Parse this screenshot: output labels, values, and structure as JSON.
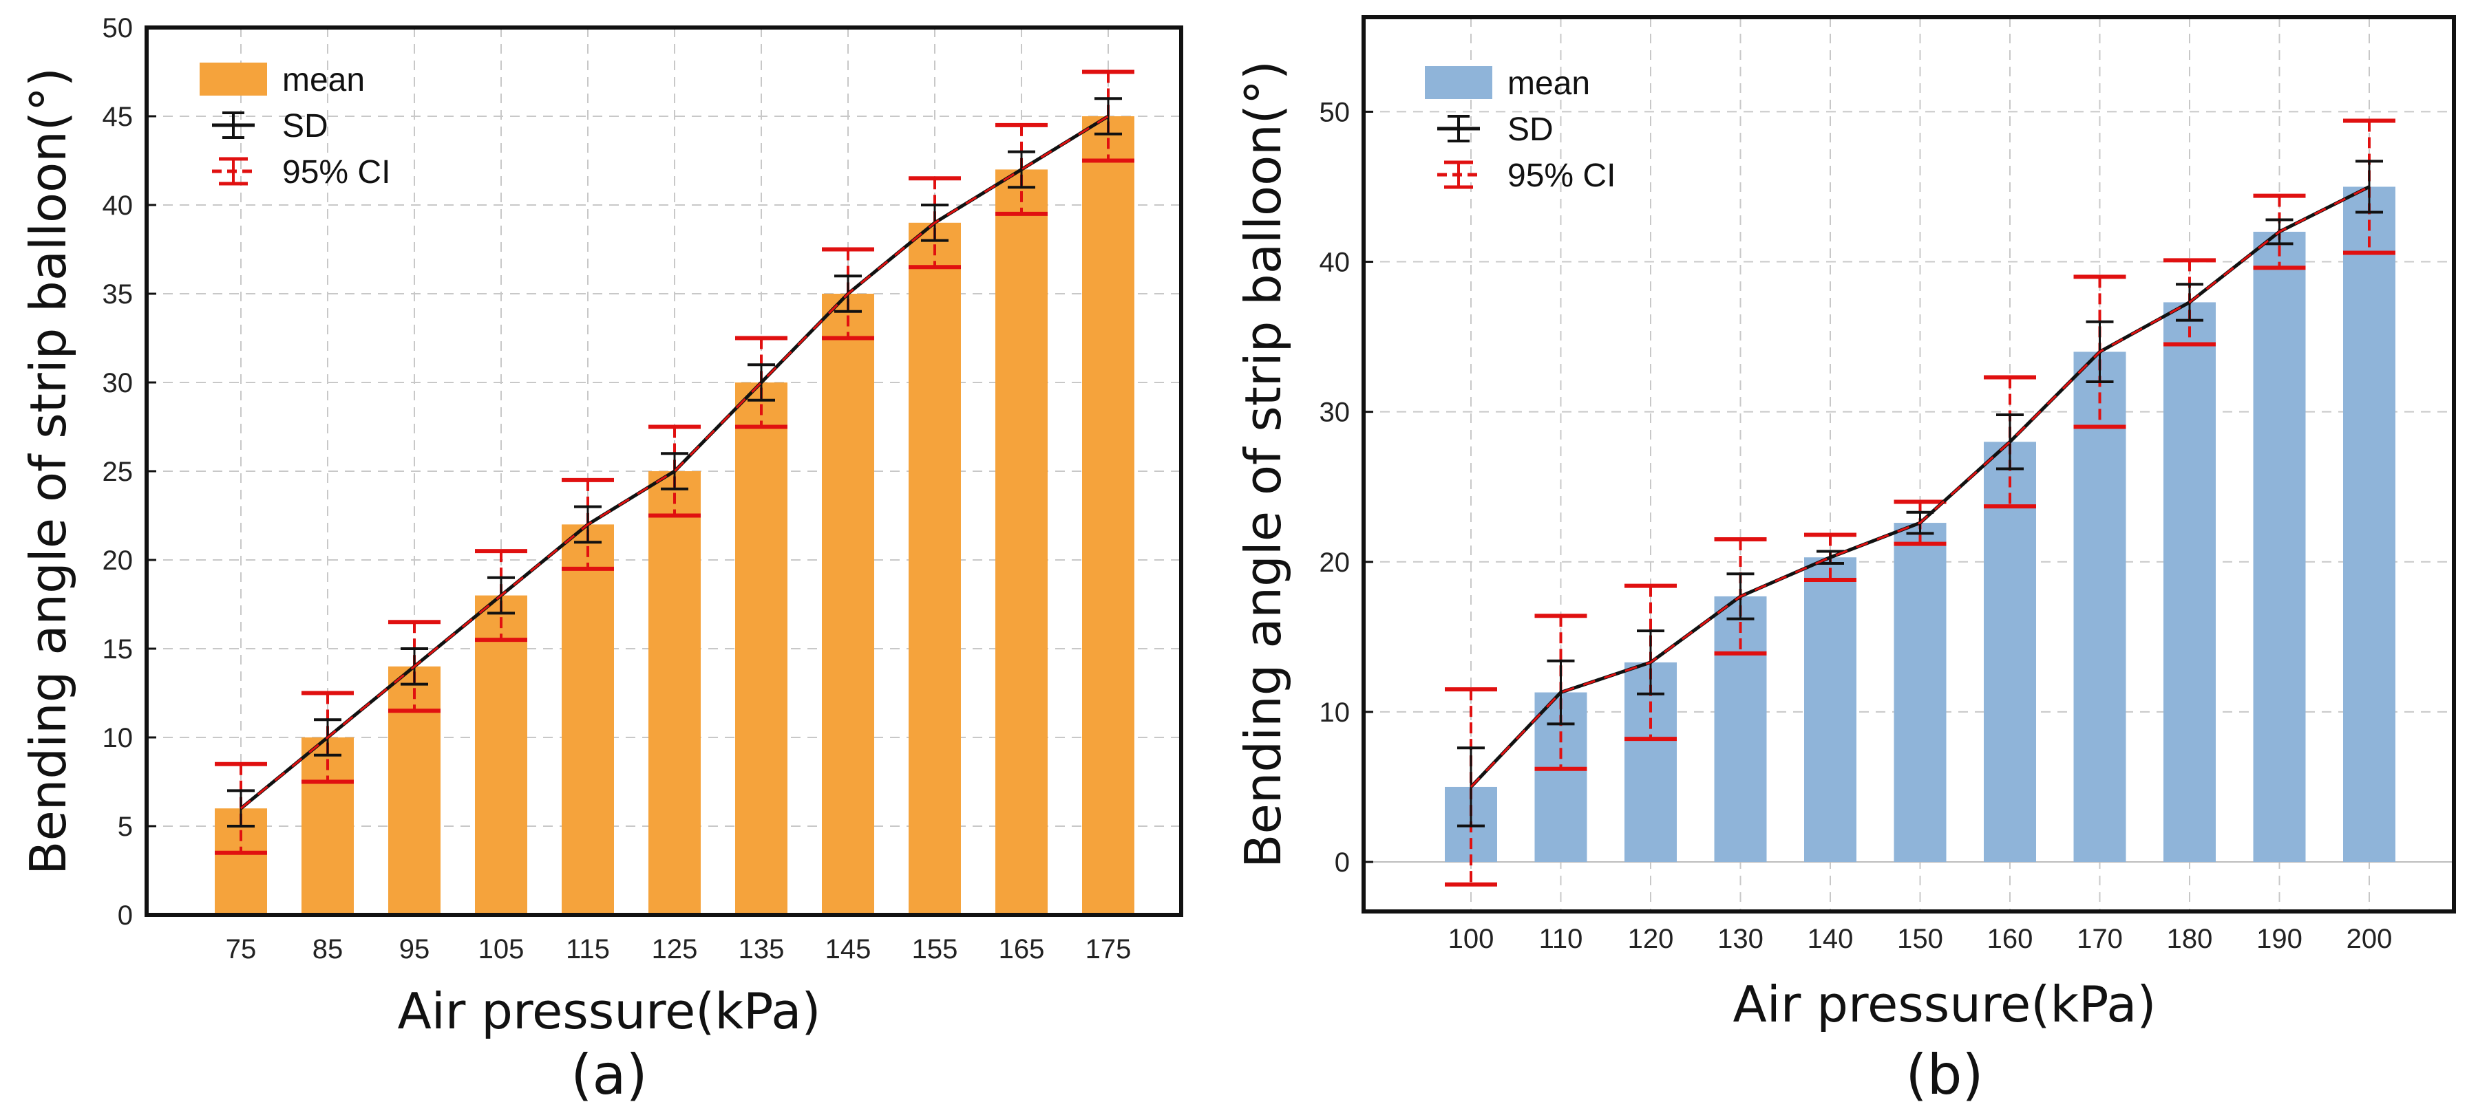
{
  "chart_data": [
    {
      "type": "bar",
      "panel_label": "(a)",
      "xlabel": "Air pressure(kPa)",
      "ylabel": "Bending angle of strip balloon(°)",
      "categories": [
        "75",
        "85",
        "95",
        "105",
        "115",
        "125",
        "135",
        "145",
        "155",
        "165",
        "175"
      ],
      "values": [
        6,
        10,
        14,
        18,
        22,
        25,
        30,
        35,
        39,
        42,
        45
      ],
      "sd": [
        1,
        1,
        1,
        1,
        1,
        1,
        1,
        1,
        1,
        1,
        1
      ],
      "ci95": [
        2.5,
        2.5,
        2.5,
        2.5,
        2.5,
        2.5,
        2.5,
        2.5,
        2.5,
        2.5,
        2.5
      ],
      "ylim": [
        0,
        50
      ],
      "yticks": [
        0,
        5,
        10,
        15,
        20,
        25,
        30,
        35,
        40,
        45,
        50
      ],
      "grid": true,
      "bar_color": "#f5a33c",
      "legend": {
        "position": "top-left",
        "entries": [
          "mean",
          "SD",
          "95% CI"
        ]
      }
    },
    {
      "type": "bar",
      "panel_label": "(b)",
      "xlabel": "Air pressure(kPa)",
      "ylabel": "Bending angle of strip balloon(°)",
      "categories": [
        "100",
        "110",
        "120",
        "130",
        "140",
        "150",
        "160",
        "170",
        "180",
        "190",
        "200"
      ],
      "values": [
        5,
        11.3,
        13.3,
        17.7,
        20.3,
        22.6,
        28,
        34,
        37.3,
        42,
        45
      ],
      "sd": [
        2.6,
        2.1,
        2.1,
        1.5,
        0.4,
        0.7,
        1.8,
        2,
        1.2,
        0.8,
        1.7
      ],
      "ci95": [
        6.5,
        5.1,
        5.1,
        3.8,
        1.5,
        1.4,
        4.3,
        5,
        2.8,
        2.4,
        4.4
      ],
      "ylim": [
        -3.3,
        56.3
      ],
      "yticks": [
        0,
        10,
        20,
        30,
        40,
        50
      ],
      "grid": true,
      "bar_color": "#8fb4d9",
      "legend": {
        "position": "top-left",
        "entries": [
          "mean",
          "SD",
          "95% CI"
        ]
      }
    }
  ]
}
